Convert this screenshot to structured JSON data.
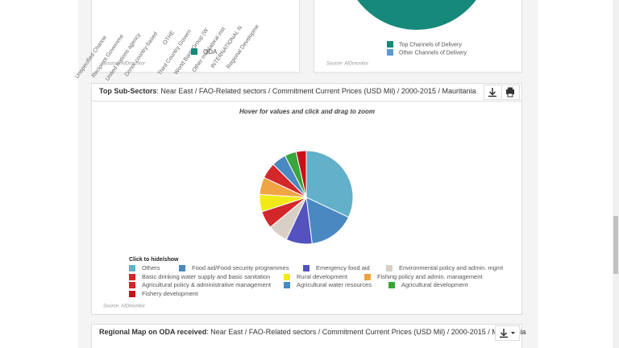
{
  "channels_chart": {
    "labels": [
      "Unspecified Channe",
      "Recipient Governme",
      "United Nations agency",
      "Donor country-based",
      "OTHE",
      "Third Country Govern",
      "World Bank Group (W",
      "Other multilateral inst",
      "INTERNATIONAL N",
      "Regional Developme"
    ],
    "legend": "ODA",
    "color": "#16897a",
    "source": "Source: AIDmonitor"
  },
  "delivery_chart": {
    "legend": [
      {
        "name": "Top Channels of Delivery",
        "color": "#16897a"
      },
      {
        "name": "Other Channels of Delivery",
        "color": "#5b9bd5"
      }
    ],
    "source": "Source: AIDmonitor"
  },
  "sub_sectors": {
    "title": "Top Sub-Sectors",
    "filters": ": Near East / FAO-Related sectors / Commitment Current Prices (USD Mil) / 2000-2015 / Mauritania",
    "subtitle": "Hover for values and click and drag to zoom",
    "legend_title": "Click to hide/show",
    "slices": [
      {
        "label": "Others",
        "value": 32,
        "color": "#62b0c9"
      },
      {
        "label": "Food aid/Food security programmes",
        "value": 16,
        "color": "#4a88c2"
      },
      {
        "label": "Emergency food aid",
        "value": 9,
        "color": "#5352bf"
      },
      {
        "label": "Environmental policy and admin. mgmt",
        "value": 7,
        "color": "#d8d0c6"
      },
      {
        "label": "Basic drinking water supply and basic sanitation",
        "value": 6,
        "color": "#d2272b"
      },
      {
        "label": "Rural development",
        "value": 6,
        "color": "#f2ea18"
      },
      {
        "label": "Fishing policy and admin. management",
        "value": 6,
        "color": "#f0a444"
      },
      {
        "label": "Agricultural policy & administrative management",
        "value": 5.5,
        "color": "#d2272b"
      },
      {
        "label": "Agricultural water resources",
        "value": 5,
        "color": "#4a88c2"
      },
      {
        "label": "Agricultural development",
        "value": 4,
        "color": "#38a63a"
      },
      {
        "label": "Fishery development",
        "value": 3.5,
        "color": "#c8101a"
      }
    ],
    "source": "Source: AIDmonitor"
  },
  "regional_map": {
    "title": "Regional Map on ODA received",
    "filters": ": Near East / FAO-Related sectors / Commitment Current Prices (USD Mil) / 2000-2015 / Mauritania"
  }
}
